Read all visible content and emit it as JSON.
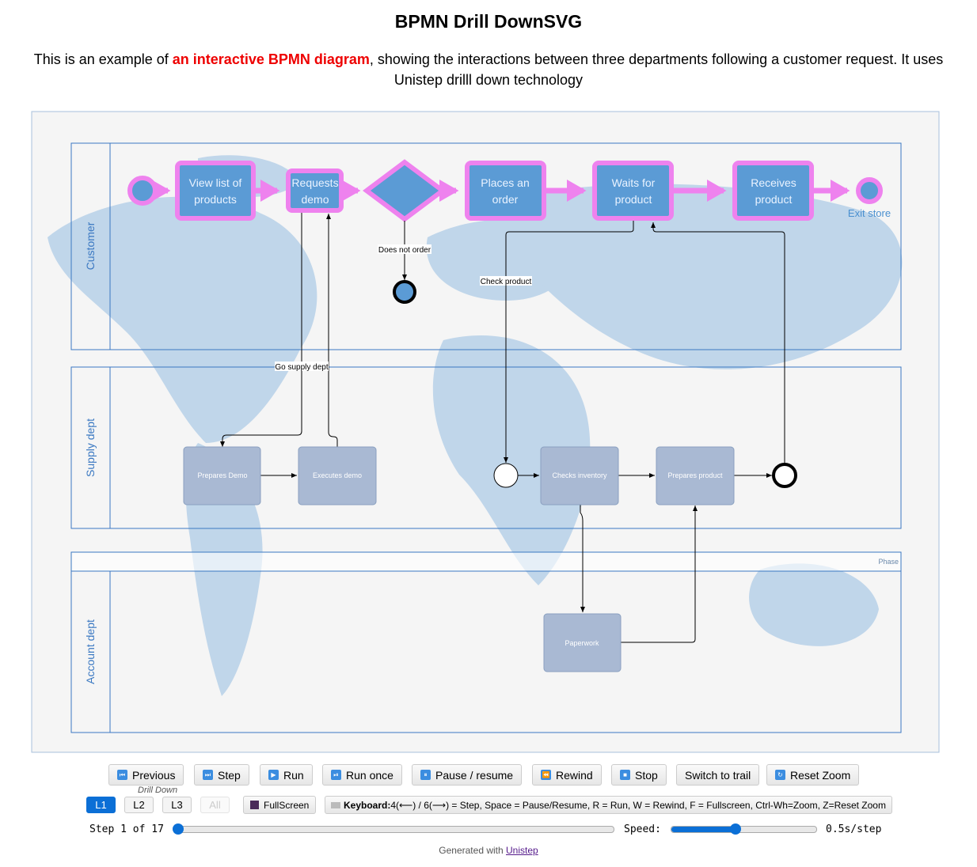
{
  "page": {
    "title": "BPMN Drill DownSVG",
    "intro_before": "This is an example of ",
    "intro_link": "an interactive BPMN diagram",
    "intro_after": ", showing the interactions between three departments following a customer request. It uses Unistep drilll down technology"
  },
  "diagram": {
    "lanes": [
      "Customer",
      "Supply dept",
      "Account dept"
    ],
    "phase_label": "Phase",
    "customer_tasks": {
      "view_list": [
        "View list of",
        "products"
      ],
      "requests_demo": [
        "Requests",
        "demo"
      ],
      "places_order": [
        "Places an",
        "order"
      ],
      "waits": [
        "Waits for",
        "product"
      ],
      "receives": [
        "Receives",
        "product"
      ]
    },
    "exit_label": "Exit store",
    "flow_labels": {
      "does_not_order": "Does not order",
      "check_product": "Check product",
      "go_supply": "Go supply dept"
    },
    "supply_tasks": {
      "prepares_demo": "Prepares Demo",
      "executes_demo": "Executes demo",
      "checks_inventory": "Checks inventory",
      "prepares_product": "Prepares product"
    },
    "account_tasks": {
      "paperwork": "Paperwork"
    },
    "colors": {
      "highlight": "#ee82ee",
      "task_fill": "#5b9bd5",
      "supply_fill": "#a9b9d3",
      "lane_border": "#3a78c2",
      "map": "#c0d6ea"
    }
  },
  "controls": {
    "buttons": [
      "Previous",
      "Step",
      "Run",
      "Run once",
      "Pause / resume",
      "Rewind",
      "Stop",
      "Switch to trail",
      "Reset Zoom"
    ],
    "drill_down_label": "Drill Down",
    "levels": [
      "L1",
      "L2",
      "L3",
      "All"
    ],
    "active_level": "L1",
    "fullscreen": "FullScreen",
    "keyboard_bold": "Keyboard:",
    "keyboard_text": "4(⟵) / 6(⟶) = Step, Space = Pause/Resume, R = Run, W = Rewind, F = Fullscreen, Ctrl-Wh=Zoom, Z=Reset Zoom",
    "step_text": "Step 1 of 17",
    "step_current": 1,
    "step_total": 17,
    "speed_label": "Speed:",
    "speed_value": "0.5s/step",
    "speed_fraction": 0.45
  },
  "footer": {
    "generated": "Generated with",
    "link": "Unistep"
  }
}
